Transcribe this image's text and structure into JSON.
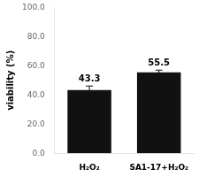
{
  "chart_data": {
    "type": "bar",
    "categories": [
      "H₂O₂",
      "SA1-17+H₂O₂"
    ],
    "values": [
      43.3,
      55.5
    ],
    "errors": [
      2.8,
      1.5
    ],
    "color": "#111111",
    "ylabel": "viability (%)",
    "ylim": [
      0.0,
      100.0
    ],
    "yticks": [
      {
        "value": 0,
        "label": "0.0"
      },
      {
        "value": 20,
        "label": "20.0"
      },
      {
        "value": 40,
        "label": "40.0"
      },
      {
        "value": 60,
        "label": "60.0"
      },
      {
        "value": 80,
        "label": "80.0"
      },
      {
        "value": 100,
        "label": "100.0"
      }
    ],
    "grid": false,
    "data_labels": true
  }
}
